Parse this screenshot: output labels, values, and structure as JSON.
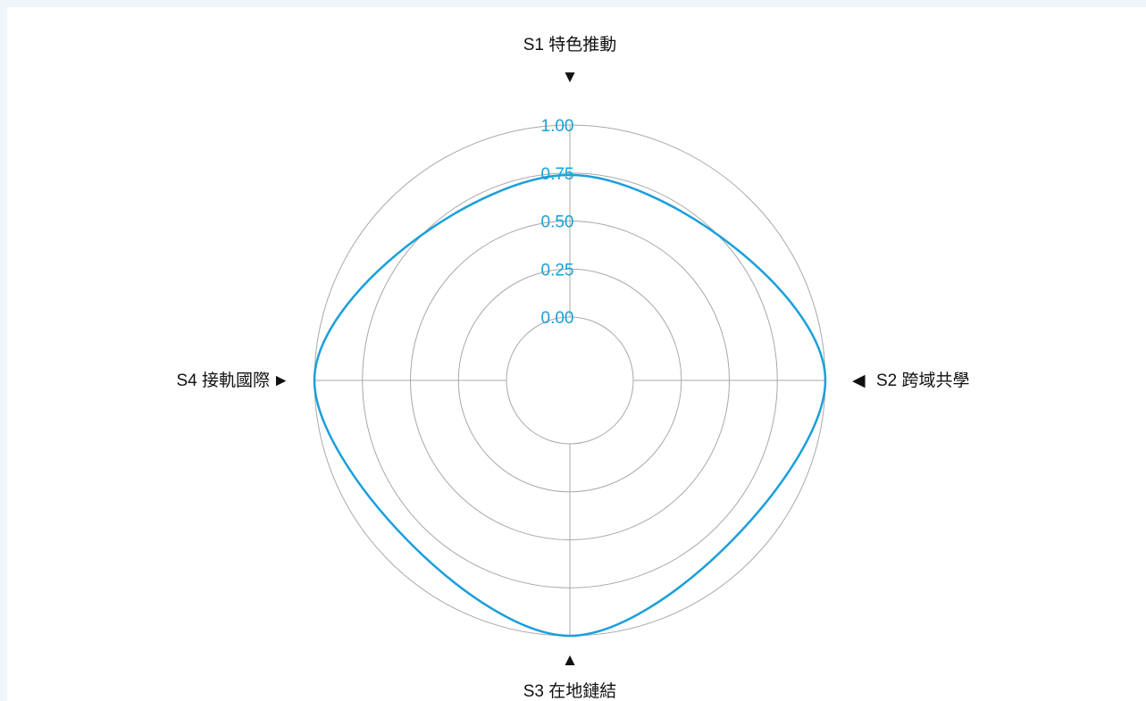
{
  "chart_data": {
    "type": "radar",
    "title": "",
    "axes": [
      {
        "key": "S1",
        "label": "S1 特色推動",
        "marker": "▼"
      },
      {
        "key": "S2",
        "label": "S2 跨域共學",
        "marker": "◀"
      },
      {
        "key": "S3",
        "label": "S3 在地鏈結",
        "marker": "▲"
      },
      {
        "key": "S4",
        "label": "S4 接軌國際",
        "marker": "►"
      }
    ],
    "rlim": [
      0,
      1
    ],
    "ticks": [
      "0.00",
      "0.25",
      "0.50",
      "0.75",
      "1.00"
    ],
    "tick_values": [
      0,
      0.25,
      0.5,
      0.75,
      1.0
    ],
    "series": [
      {
        "values": [
          0.74,
          1.0,
          1.0,
          1.0
        ]
      }
    ],
    "grid": true,
    "colors": {
      "series": "#1a9fdb",
      "ticks": "#1a9fdb",
      "grid": "#a8a8a8",
      "axis_text": "#111111"
    }
  }
}
